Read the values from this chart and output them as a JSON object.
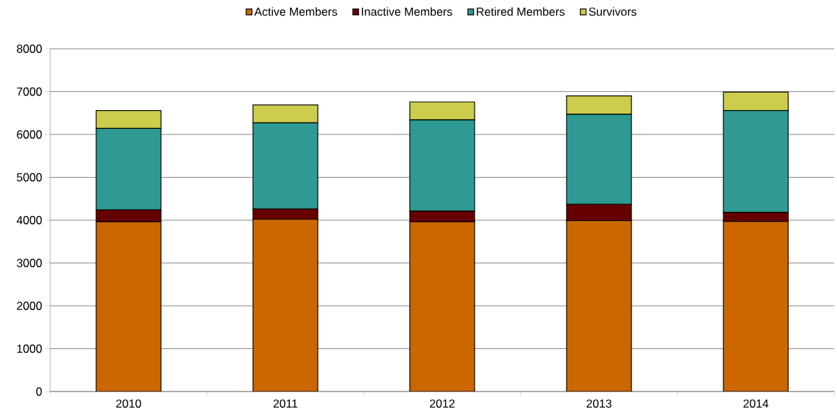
{
  "chart_data": {
    "type": "bar",
    "stacked": true,
    "categories": [
      "2010",
      "2011",
      "2012",
      "2013",
      "2014"
    ],
    "series": [
      {
        "name": "Active Members",
        "color": "#cc6600",
        "values": [
          3960,
          4020,
          3960,
          3990,
          3970
        ]
      },
      {
        "name": "Inactive Members",
        "color": "#660000",
        "values": [
          280,
          240,
          250,
          380,
          210
        ]
      },
      {
        "name": "Retired Members",
        "color": "#2e9a93",
        "values": [
          1900,
          2010,
          2130,
          2100,
          2380
        ]
      },
      {
        "name": "Survivors",
        "color": "#cccc4d",
        "values": [
          420,
          420,
          420,
          430,
          430
        ]
      }
    ],
    "ylim": [
      0,
      8000
    ],
    "yticks": [
      0,
      1000,
      2000,
      3000,
      4000,
      5000,
      6000,
      7000,
      8000
    ],
    "grid": "y",
    "legend": "top"
  }
}
